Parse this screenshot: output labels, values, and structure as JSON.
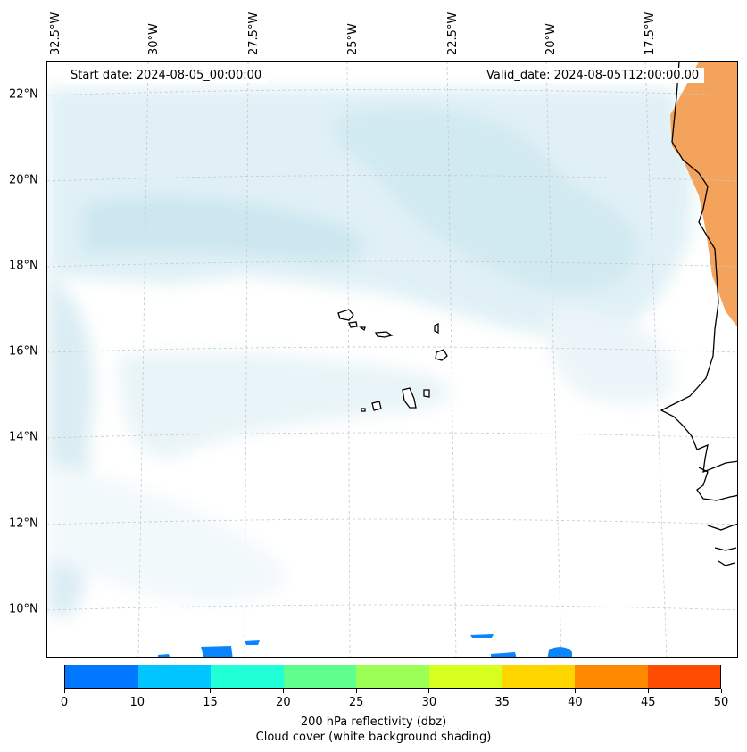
{
  "map": {
    "lon_labels": [
      "32.5°W",
      "30°W",
      "27.5°W",
      "25°W",
      "22.5°W",
      "20°W",
      "17.5°W"
    ],
    "lat_labels": [
      "22°N",
      "20°N",
      "18°N",
      "16°N",
      "14°N",
      "12°N",
      "10°N"
    ],
    "start_date": "Start date: 2024-08-05_00:00:00",
    "valid_date": "Valid_date: 2024-08-05T12:00:00.00",
    "colors": {
      "cloud": "#b9dde9",
      "land_heat": "#f4a35c",
      "coast": "#000000",
      "grid": "#c8c8c8",
      "echo": "#0a84ff"
    }
  },
  "colorbar": {
    "ticks": [
      "0",
      "10",
      "15",
      "20",
      "25",
      "30",
      "35",
      "40",
      "45",
      "50"
    ],
    "colors": [
      "#0077ff",
      "#00c5ff",
      "#20ffd5",
      "#5eff8d",
      "#9bff55",
      "#d7ff20",
      "#ffd500",
      "#ff8a00",
      "#ff4c00"
    ],
    "label_line1": "200 hPa reflectivity (dbz)",
    "label_line2": "Cloud cover (white background shading)"
  }
}
